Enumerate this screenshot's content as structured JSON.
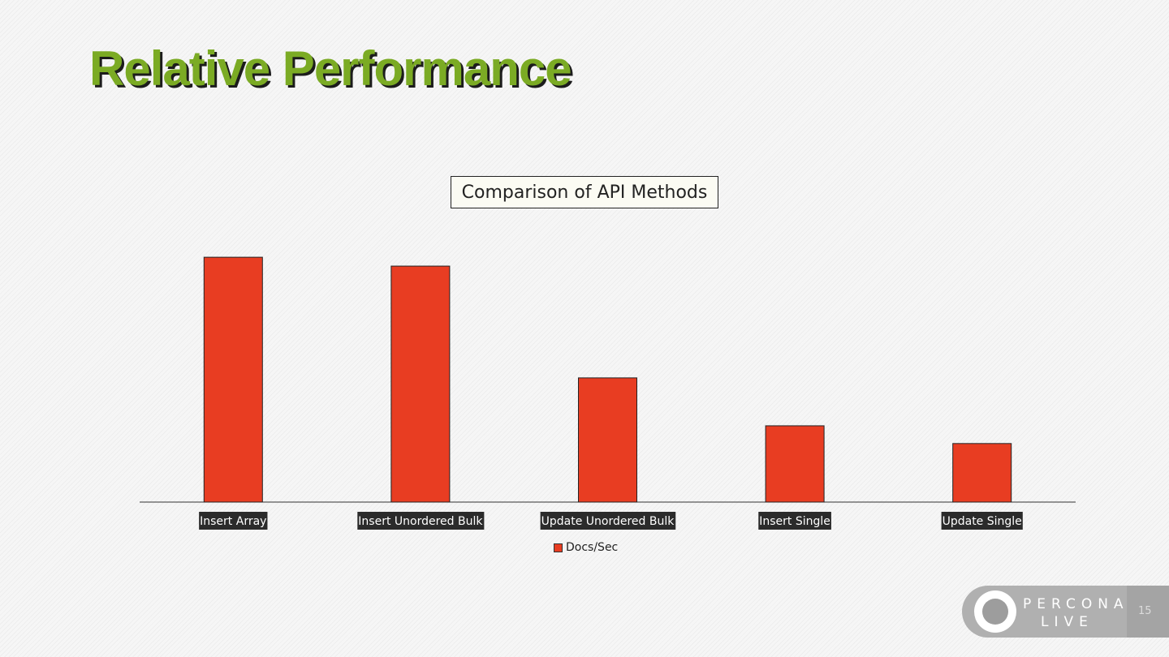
{
  "slide": {
    "title": "Relative Performance",
    "page_number": "15",
    "logo_line1": "PERCONA",
    "logo_line2": "LIVE"
  },
  "colors": {
    "title": "#7bab24",
    "bar": "#e83d22"
  },
  "chart_data": {
    "type": "bar",
    "title": "Comparison of API Methods",
    "categories": [
      "Insert Array",
      "Insert Unordered Bulk",
      "Update Unordered Bulk",
      "Insert Single",
      "Update Single"
    ],
    "series": [
      {
        "name": "Docs/Sec",
        "values": [
          6900,
          6650,
          3500,
          2150,
          1650
        ]
      }
    ],
    "ylim": [
      0,
      8000
    ],
    "grid": false,
    "legend_position": "bottom"
  }
}
